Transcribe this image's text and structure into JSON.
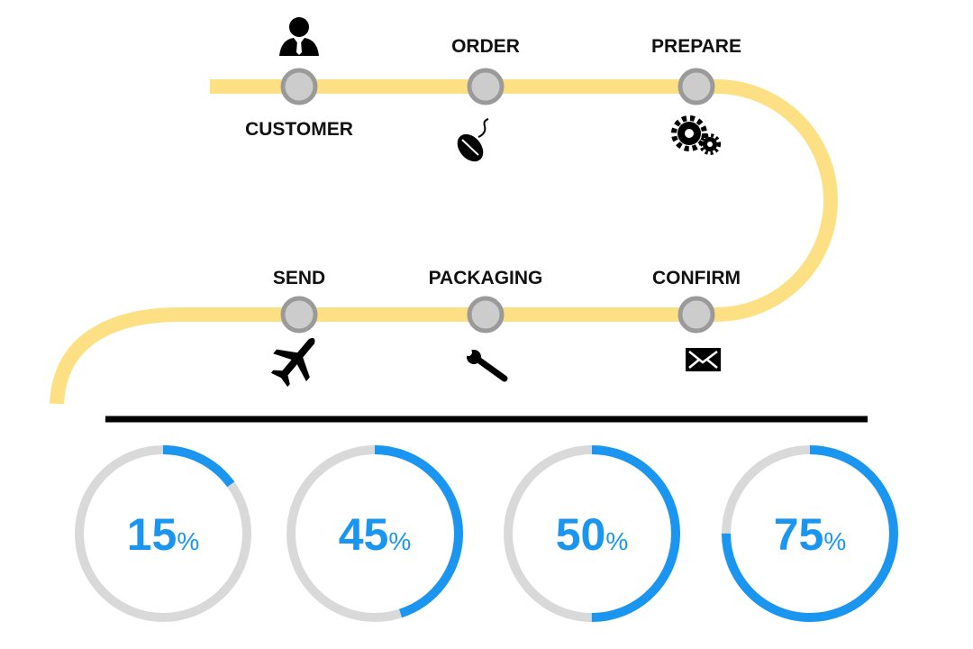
{
  "steps": [
    {
      "label": "CUSTOMER"
    },
    {
      "label": "ORDER"
    },
    {
      "label": "PREPARE"
    },
    {
      "label": "SEND"
    },
    {
      "label": "PACKAGING"
    },
    {
      "label": "CONFIRM"
    }
  ],
  "progress": [
    {
      "value": 15,
      "unit": "%"
    },
    {
      "value": 45,
      "unit": "%"
    },
    {
      "value": 50,
      "unit": "%"
    },
    {
      "value": 75,
      "unit": "%"
    }
  ]
}
